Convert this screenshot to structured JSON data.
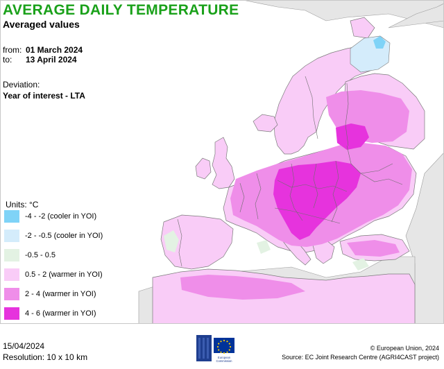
{
  "header": {
    "title": "AVERAGE DAILY TEMPERATURE",
    "subtitle": "Averaged values",
    "from_label": "from:",
    "from_value": "01 March 2024",
    "to_label": "to:",
    "to_value": "13 April 2024",
    "deviation_label": "Deviation:",
    "deviation_value": "Year of interest - LTA"
  },
  "legend": {
    "units": "Units: °C",
    "items": [
      {
        "label": "-4 - -2 (cooler in YOI)",
        "color": "#7fd3f7"
      },
      {
        "label": "-2 - -0.5 (cooler in YOI)",
        "color": "#d4ecfb"
      },
      {
        "label": "-0.5 - 0.5",
        "color": "#e3f2e3"
      },
      {
        "label": "0.5 - 2 (warmer in YOI)",
        "color": "#f9ccf7"
      },
      {
        "label": "2 - 4 (warmer in YOI)",
        "color": "#ef8ee9"
      },
      {
        "label": "4 - 6 (warmer in YOI)",
        "color": "#e633dd"
      }
    ]
  },
  "map": {
    "sea_color": "#ffffff",
    "outside_color": "#e6e6e6",
    "border_color": "#6e6e6e"
  },
  "footer": {
    "date": "15/04/2024",
    "resolution": "Resolution: 10 x 10 km",
    "logo_text_1": "European",
    "logo_text_2": "Commission",
    "copyright": "© European Union, 2024",
    "source": "Source: EC Joint Research Centre (AGRI4CAST project)"
  }
}
